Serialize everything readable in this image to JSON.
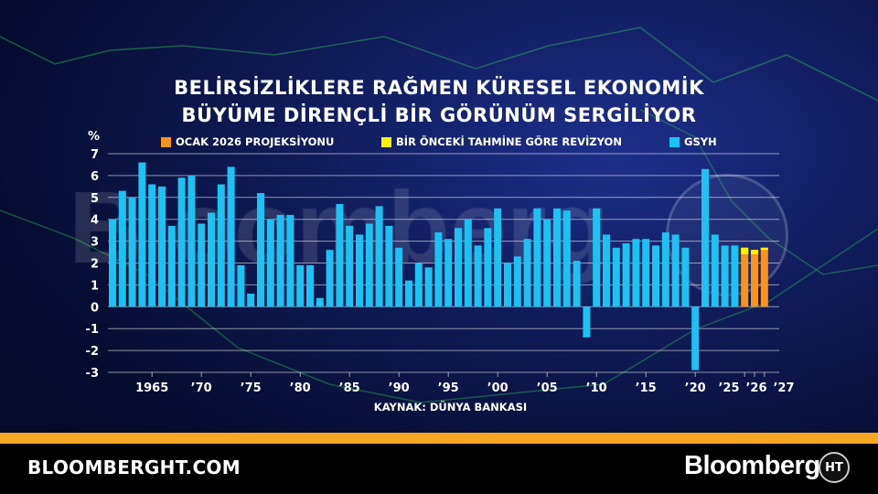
{
  "header": {
    "title_line1": "BELİRSİZLİKLERE RAĞMEN KÜRESEL EKONOMİK",
    "title_line2": "BÜYÜME DİRENÇLİ BİR GÖRÜNÜM SERGİLİYOR"
  },
  "legend": [
    {
      "label": "OCAK 2026 PROJEKSİYONU",
      "color": "#f7941d"
    },
    {
      "label": "BİR ÖNCEKİ TAHMİNE GÖRE REVİZYON",
      "color": "#fff200"
    },
    {
      "label": "GSYH",
      "color": "#1cc3f2"
    }
  ],
  "chart_data": {
    "type": "bar",
    "ylabel": "%",
    "ylim": [
      -3,
      7
    ],
    "yticks": [
      7,
      6,
      5,
      4,
      3,
      2,
      1,
      0,
      -1,
      -2,
      -3
    ],
    "grid": true,
    "legend_position": "top",
    "xtick_labels": [
      {
        "year": 1965,
        "label": "1965"
      },
      {
        "year": 1970,
        "label": "’70"
      },
      {
        "year": 1975,
        "label": "’75"
      },
      {
        "year": 1980,
        "label": "’80"
      },
      {
        "year": 1985,
        "label": "’85"
      },
      {
        "year": 1990,
        "label": "’90"
      },
      {
        "year": 1995,
        "label": "’95"
      },
      {
        "year": 2000,
        "label": "’00"
      },
      {
        "year": 2005,
        "label": "’05"
      },
      {
        "year": 2010,
        "label": "’10"
      },
      {
        "year": 2015,
        "label": "’15"
      },
      {
        "year": 2020,
        "label": "’20"
      },
      {
        "year": 2025,
        "label": "’25"
      },
      {
        "year": 2026,
        "label": "’26"
      },
      {
        "year": 2027,
        "label": "’27"
      }
    ],
    "series": [
      {
        "name": "GSYH",
        "color": "#1cc3f2",
        "start_year": 1961,
        "values": [
          4.0,
          5.3,
          5.0,
          6.6,
          5.6,
          5.5,
          3.7,
          5.9,
          6.0,
          3.8,
          4.3,
          5.6,
          6.4,
          1.9,
          0.6,
          5.2,
          4.0,
          4.2,
          4.2,
          1.9,
          1.9,
          0.4,
          2.6,
          4.7,
          3.7,
          3.3,
          3.8,
          4.6,
          3.7,
          2.7,
          1.2,
          2.0,
          1.8,
          3.4,
          3.1,
          3.6,
          4.0,
          2.8,
          3.6,
          4.5,
          2.0,
          2.3,
          3.1,
          4.5,
          4.0,
          4.5,
          4.4,
          2.1,
          -1.4,
          4.5,
          3.3,
          2.7,
          2.9,
          3.1,
          3.1,
          2.8,
          3.4,
          3.3,
          2.7,
          -2.9,
          6.3,
          3.3,
          2.8,
          2.8
        ]
      },
      {
        "name": "OCAK 2026 PROJEKSİYONU",
        "color": "#f7941d",
        "years": [
          2025,
          2026,
          2027
        ],
        "values": [
          2.7,
          2.6,
          2.7
        ]
      },
      {
        "name": "BİR ÖNCEKİ TAHMİNE GÖRE REVİZYON",
        "color": "#fff200",
        "years": [
          2025,
          2026,
          2027
        ],
        "values": [
          0.3,
          0.2,
          0.1
        ]
      }
    ]
  },
  "source": "KAYNAK: DÜNYA BANKASI",
  "watermark": "Bloomberg",
  "footer": {
    "site": "BLOOMBERGHT.COM",
    "brand": "Bloomberg",
    "emblem": "HT"
  }
}
